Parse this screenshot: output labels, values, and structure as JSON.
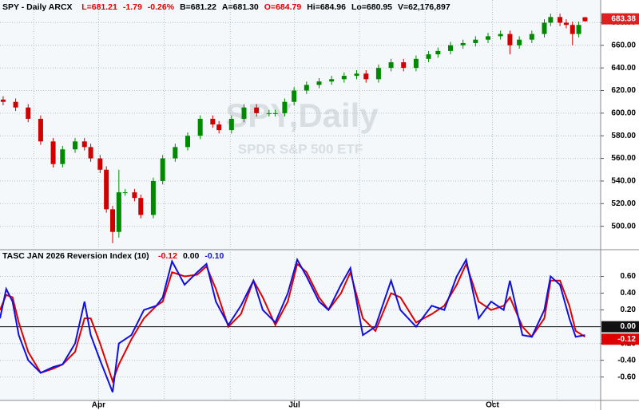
{
  "chart_data": [
    {
      "type": "candlestick",
      "title": "SPY - Daily ARCX",
      "quote": [
        {
          "text": "L=681.21",
          "color": "#e00000"
        },
        {
          "text": "-1.79",
          "color": "#e00000"
        },
        {
          "text": "-0.26%",
          "color": "#e00000"
        },
        {
          "text": "B=681.22",
          "color": "#000000"
        },
        {
          "text": "A=681.30",
          "color": "#000000"
        },
        {
          "text": "O=684.79",
          "color": "#e00000"
        },
        {
          "text": "Hi=684.96",
          "color": "#000000"
        },
        {
          "text": "Lo=680.95",
          "color": "#000000"
        },
        {
          "text": "V=62,176,897",
          "color": "#000000"
        }
      ],
      "watermark": "SPY,Daily",
      "watermark_subtitle": "SPDR S&P 500 ETF",
      "x": [
        1,
        5,
        9,
        13,
        17,
        20,
        24,
        27,
        29,
        32,
        34,
        36,
        38,
        40,
        43,
        45,
        49,
        52,
        56,
        60,
        64,
        68,
        70,
        74,
        78,
        82,
        86,
        88,
        91,
        94,
        98,
        102,
        106,
        110,
        114,
        117,
        121,
        125,
        129,
        133,
        137,
        140,
        144,
        148,
        152,
        156,
        160,
        163,
        166,
        170,
        174,
        176,
        179,
        181,
        183,
        185,
        187
      ],
      "open": [
        612,
        610,
        605,
        595,
        575,
        555,
        568,
        575,
        570,
        560,
        550,
        515,
        495,
        530,
        530,
        525,
        510,
        540,
        560,
        570,
        580,
        595,
        590,
        585,
        595,
        605,
        600,
        600,
        600,
        610,
        620,
        625,
        628,
        630,
        633,
        635,
        630,
        640,
        645,
        640,
        648,
        652,
        655,
        660,
        662,
        665,
        668,
        670,
        660,
        665,
        670,
        680,
        685,
        680,
        678,
        670,
        684.79
      ],
      "high": [
        615,
        613,
        608,
        598,
        578,
        571,
        578,
        578,
        573,
        563,
        553,
        518,
        550,
        533,
        533,
        528,
        543,
        563,
        573,
        583,
        598,
        598,
        593,
        598,
        608,
        608,
        603,
        603,
        613,
        623,
        628,
        631,
        633,
        636,
        638,
        638,
        643,
        648,
        648,
        651,
        655,
        658,
        663,
        665,
        668,
        671,
        673,
        673,
        668,
        673,
        683,
        688,
        688,
        683,
        681,
        681,
        684.96
      ],
      "low": [
        607,
        602,
        592,
        572,
        552,
        552,
        565,
        567,
        557,
        547,
        512,
        485,
        490,
        527,
        522,
        507,
        507,
        537,
        557,
        567,
        577,
        587,
        582,
        582,
        592,
        597,
        597,
        597,
        597,
        607,
        617,
        622,
        625,
        627,
        630,
        627,
        627,
        637,
        637,
        637,
        645,
        649,
        652,
        657,
        659,
        662,
        665,
        652,
        657,
        662,
        667,
        677,
        677,
        675,
        660,
        667,
        680.95
      ],
      "close": [
        610,
        605,
        595,
        575,
        555,
        568,
        575,
        570,
        560,
        550,
        515,
        495,
        530,
        530,
        525,
        510,
        540,
        560,
        570,
        580,
        595,
        590,
        585,
        595,
        605,
        600,
        600,
        600,
        610,
        620,
        625,
        628,
        630,
        633,
        635,
        630,
        640,
        645,
        640,
        648,
        652,
        655,
        660,
        662,
        665,
        668,
        670,
        660,
        665,
        670,
        680,
        685,
        680,
        678,
        670,
        678,
        681.21
      ],
      "up_color": "#008a00",
      "down_color": "#d00000",
      "last_tag": {
        "value": 683.38,
        "label": "683.38"
      },
      "xlim": [
        0,
        192
      ],
      "ylim": [
        480,
        693
      ],
      "yticks": [
        {
          "value": 500,
          "label": "500.00"
        },
        {
          "value": 520,
          "label": "520.00"
        },
        {
          "value": 540,
          "label": "540.00"
        },
        {
          "value": 560,
          "label": "560.00"
        },
        {
          "value": 580,
          "label": "580.00"
        },
        {
          "value": 600,
          "label": "600.00"
        },
        {
          "value": 620,
          "label": "620.00"
        },
        {
          "value": 640,
          "label": "640.00"
        },
        {
          "value": 660,
          "label": "660.00"
        },
        {
          "value": 680,
          "label": "680.00"
        }
      ],
      "xgrid": [
        10.8,
        31.5,
        52.5,
        73.6,
        94.1,
        114.9,
        135.9,
        157.4,
        178
      ],
      "grid": true
    },
    {
      "type": "line",
      "title": "TASC JAN 2026 Reversion Index (10)",
      "x": [
        0,
        2,
        4,
        6,
        9,
        13,
        17,
        20,
        24,
        27,
        29,
        32,
        36,
        38,
        42,
        46,
        50,
        52,
        55,
        59,
        63,
        66,
        69,
        73,
        77,
        81,
        84,
        88,
        92,
        95,
        98,
        102,
        105,
        109,
        112,
        116,
        120,
        125,
        128,
        133,
        138,
        142,
        146,
        149,
        153,
        157,
        161,
        163,
        167,
        170,
        174,
        176,
        179,
        182,
        184,
        187
      ],
      "series": [
        {
          "name": "-0.12",
          "color": "#e00000",
          "values": [
            0.2,
            0.38,
            0.35,
            0.05,
            -0.3,
            -0.55,
            -0.5,
            -0.45,
            -0.3,
            0.1,
            0.1,
            -0.2,
            -0.65,
            -0.45,
            -0.15,
            0.1,
            0.25,
            0.3,
            0.65,
            0.6,
            0.62,
            0.72,
            0.45,
            0.0,
            0.15,
            0.55,
            0.35,
            0.02,
            0.3,
            0.75,
            0.65,
            0.35,
            0.2,
            0.4,
            0.65,
            0.1,
            -0.05,
            0.4,
            0.35,
            0.05,
            0.15,
            0.25,
            0.5,
            0.75,
            0.3,
            0.2,
            0.25,
            0.35,
            0.0,
            -0.12,
            0.1,
            0.55,
            0.55,
            0.25,
            -0.05,
            -0.12
          ]
        },
        {
          "name": "-0.10",
          "color": "#1010e0",
          "values": [
            0.1,
            0.45,
            0.3,
            -0.1,
            -0.4,
            -0.55,
            -0.48,
            -0.45,
            -0.2,
            0.3,
            -0.1,
            -0.4,
            -0.78,
            -0.2,
            -0.1,
            0.2,
            0.25,
            0.35,
            0.78,
            0.5,
            0.65,
            0.75,
            0.3,
            0.02,
            0.25,
            0.55,
            0.2,
            0.05,
            0.4,
            0.8,
            0.6,
            0.3,
            0.2,
            0.5,
            0.7,
            -0.1,
            0.0,
            0.55,
            0.2,
            0.0,
            0.25,
            0.2,
            0.6,
            0.8,
            0.1,
            0.3,
            0.2,
            0.55,
            -0.1,
            -0.12,
            0.2,
            0.6,
            0.5,
            0.1,
            -0.12,
            -0.1
          ]
        }
      ],
      "reference_line": {
        "value": 0,
        "label": "0.00"
      },
      "xlim": [
        0,
        192
      ],
      "ylim": [
        -0.86,
        0.9
      ],
      "yticks": [
        {
          "value": 0.6,
          "label": "0.60"
        },
        {
          "value": 0.4,
          "label": "0.40"
        },
        {
          "value": 0.2,
          "label": "0.20"
        },
        {
          "value": -0.2,
          "label": "-0.20"
        },
        {
          "value": -0.4,
          "label": "-0.40"
        },
        {
          "value": -0.6,
          "label": "-0.60"
        }
      ],
      "xticks": [
        {
          "value": 31.5,
          "label": "Apr"
        },
        {
          "value": 94.1,
          "label": "Jul"
        },
        {
          "value": 157.4,
          "label": "Oct"
        }
      ],
      "xgrid": [
        10.8,
        31.5,
        52.5,
        73.6,
        94.1,
        114.9,
        135.9,
        157.4,
        178
      ],
      "grid": true
    }
  ]
}
